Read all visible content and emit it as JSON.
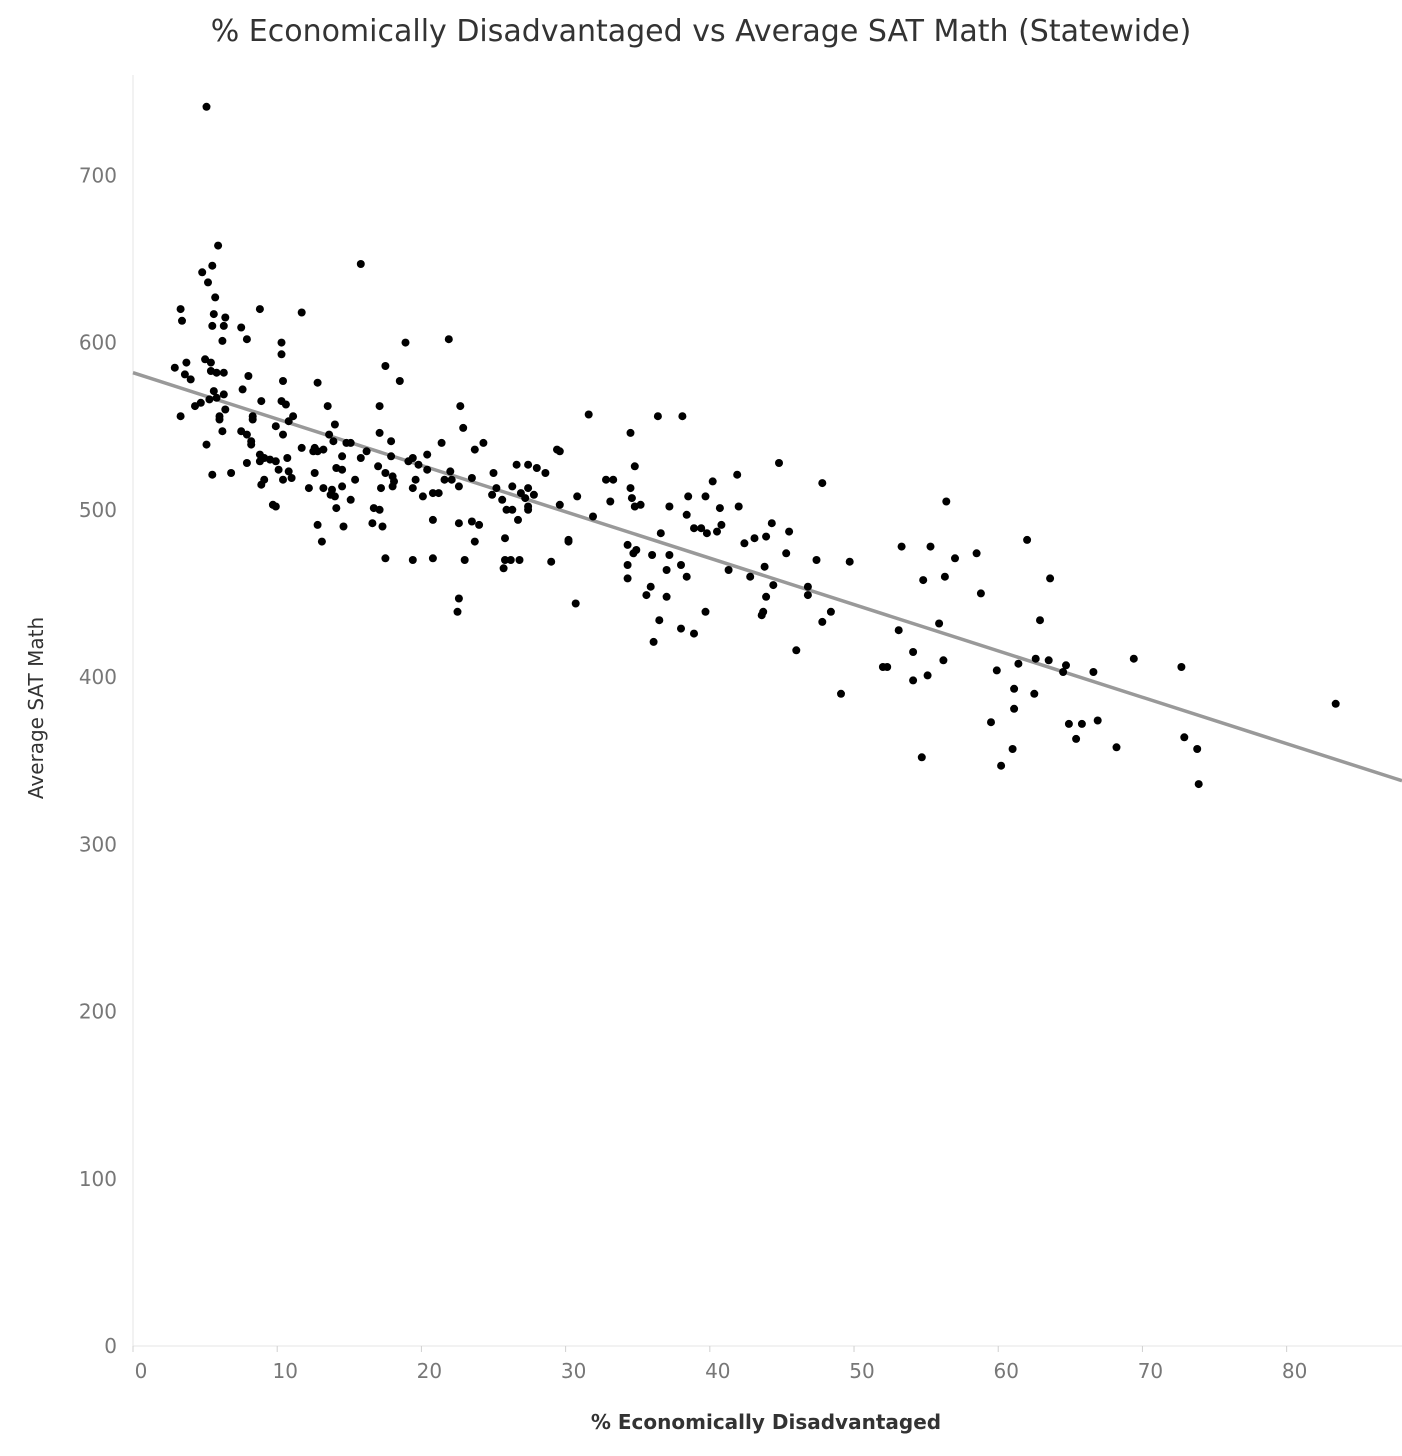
{
  "chart_data": {
    "type": "scatter",
    "title": "% Economically Disadvantaged vs Average SAT Math (Statewide)",
    "xlabel": "% Economically Disadvantaged",
    "ylabel": "Average SAT Math",
    "xlim": [
      0,
      88
    ],
    "ylim": [
      0,
      760
    ],
    "x_ticks": [
      "0",
      "10",
      "20",
      "30",
      "40",
      "50",
      "60",
      "70",
      "80"
    ],
    "y_ticks": [
      "0",
      "100",
      "200",
      "300",
      "400",
      "500",
      "600",
      "700"
    ],
    "trend_line": {
      "x": [
        0,
        88
      ],
      "y": [
        582,
        338
      ],
      "color": "#999999"
    },
    "point_color": "#000000",
    "grid": false,
    "points": [
      [
        5.1,
        741
      ],
      [
        5.9,
        658
      ],
      [
        4.8,
        642
      ],
      [
        5.5,
        646
      ],
      [
        5.2,
        636
      ],
      [
        5.7,
        627
      ],
      [
        15.8,
        647
      ],
      [
        8.8,
        620
      ],
      [
        3.3,
        620
      ],
      [
        3.4,
        613
      ],
      [
        11.7,
        618
      ],
      [
        5.6,
        617
      ],
      [
        6.4,
        615
      ],
      [
        5.5,
        610
      ],
      [
        6.3,
        610
      ],
      [
        7.5,
        609
      ],
      [
        10.3,
        600
      ],
      [
        6.2,
        601
      ],
      [
        7.9,
        602
      ],
      [
        18.9,
        600
      ],
      [
        21.9,
        602
      ],
      [
        10.3,
        593
      ],
      [
        5.0,
        590
      ],
      [
        5.4,
        588
      ],
      [
        3.7,
        588
      ],
      [
        17.5,
        586
      ],
      [
        2.9,
        585
      ],
      [
        3.6,
        581
      ],
      [
        5.4,
        583
      ],
      [
        5.8,
        582
      ],
      [
        6.3,
        582
      ],
      [
        8.0,
        580
      ],
      [
        4.0,
        578
      ],
      [
        10.4,
        577
      ],
      [
        12.8,
        576
      ],
      [
        18.5,
        577
      ],
      [
        5.6,
        571
      ],
      [
        7.6,
        572
      ],
      [
        6.3,
        569
      ],
      [
        5.3,
        566
      ],
      [
        5.8,
        567
      ],
      [
        8.9,
        565
      ],
      [
        10.3,
        565
      ],
      [
        10.6,
        563
      ],
      [
        4.7,
        564
      ],
      [
        4.3,
        562
      ],
      [
        6.4,
        560
      ],
      [
        13.5,
        562
      ],
      [
        17.1,
        562
      ],
      [
        22.7,
        562
      ],
      [
        6.0,
        556
      ],
      [
        6.0,
        554
      ],
      [
        8.3,
        556
      ],
      [
        8.3,
        554
      ],
      [
        11.1,
        556
      ],
      [
        3.3,
        556
      ],
      [
        31.6,
        557
      ],
      [
        36.4,
        556
      ],
      [
        38.1,
        556
      ],
      [
        10.8,
        553
      ],
      [
        14.0,
        551
      ],
      [
        9.9,
        550
      ],
      [
        6.2,
        547
      ],
      [
        7.5,
        547
      ],
      [
        7.9,
        545
      ],
      [
        10.4,
        545
      ],
      [
        13.6,
        545
      ],
      [
        17.1,
        546
      ],
      [
        22.9,
        549
      ],
      [
        34.5,
        546
      ],
      [
        8.2,
        541
      ],
      [
        8.2,
        539
      ],
      [
        5.1,
        539
      ],
      [
        13.9,
        541
      ],
      [
        14.8,
        540
      ],
      [
        15.1,
        540
      ],
      [
        17.9,
        541
      ],
      [
        21.4,
        540
      ],
      [
        24.3,
        540
      ],
      [
        12.6,
        537
      ],
      [
        11.7,
        537
      ],
      [
        12.5,
        535
      ],
      [
        12.8,
        535
      ],
      [
        13.2,
        536
      ],
      [
        16.2,
        535
      ],
      [
        23.7,
        536
      ],
      [
        29.4,
        536
      ],
      [
        29.6,
        535
      ],
      [
        8.8,
        533
      ],
      [
        9.1,
        531
      ],
      [
        10.7,
        531
      ],
      [
        14.5,
        532
      ],
      [
        15.8,
        531
      ],
      [
        17.9,
        532
      ],
      [
        19.4,
        531
      ],
      [
        20.4,
        533
      ],
      [
        9.5,
        530
      ],
      [
        9.9,
        529
      ],
      [
        8.8,
        529
      ],
      [
        7.9,
        528
      ],
      [
        19.1,
        529
      ],
      [
        19.8,
        527
      ],
      [
        26.6,
        527
      ],
      [
        27.4,
        527
      ],
      [
        34.8,
        526
      ],
      [
        44.8,
        528
      ],
      [
        5.5,
        521
      ],
      [
        6.8,
        522
      ],
      [
        10.1,
        524
      ],
      [
        10.8,
        523
      ],
      [
        12.6,
        522
      ],
      [
        14.1,
        525
      ],
      [
        14.5,
        524
      ],
      [
        17.0,
        526
      ],
      [
        17.5,
        522
      ],
      [
        18.0,
        520
      ],
      [
        20.4,
        524
      ],
      [
        22.0,
        523
      ],
      [
        25.0,
        522
      ],
      [
        28.0,
        525
      ],
      [
        28.6,
        522
      ],
      [
        41.9,
        521
      ],
      [
        10.4,
        518
      ],
      [
        11.0,
        519
      ],
      [
        9.1,
        518
      ],
      [
        15.4,
        518
      ],
      [
        18.1,
        517
      ],
      [
        19.6,
        518
      ],
      [
        21.6,
        518
      ],
      [
        22.1,
        518
      ],
      [
        23.5,
        519
      ],
      [
        32.8,
        518
      ],
      [
        33.3,
        518
      ],
      [
        40.2,
        517
      ],
      [
        47.8,
        516
      ],
      [
        8.9,
        515
      ],
      [
        12.2,
        513
      ],
      [
        13.2,
        513
      ],
      [
        13.8,
        512
      ],
      [
        14.5,
        514
      ],
      [
        17.2,
        513
      ],
      [
        18.0,
        514
      ],
      [
        19.4,
        513
      ],
      [
        22.6,
        514
      ],
      [
        25.2,
        513
      ],
      [
        26.3,
        514
      ],
      [
        27.4,
        513
      ],
      [
        34.5,
        513
      ],
      [
        13.7,
        509
      ],
      [
        14.0,
        508
      ],
      [
        15.1,
        506
      ],
      [
        20.1,
        508
      ],
      [
        20.8,
        510
      ],
      [
        21.2,
        510
      ],
      [
        24.9,
        509
      ],
      [
        25.6,
        506
      ],
      [
        26.9,
        510
      ],
      [
        27.2,
        507
      ],
      [
        27.8,
        509
      ],
      [
        30.8,
        508
      ],
      [
        33.1,
        505
      ],
      [
        34.6,
        507
      ],
      [
        35.2,
        503
      ],
      [
        38.5,
        508
      ],
      [
        39.7,
        508
      ],
      [
        9.7,
        503
      ],
      [
        9.9,
        502
      ],
      [
        14.1,
        501
      ],
      [
        16.7,
        501
      ],
      [
        17.1,
        500
      ],
      [
        25.9,
        500
      ],
      [
        26.3,
        500
      ],
      [
        27.4,
        502
      ],
      [
        27.4,
        500
      ],
      [
        29.6,
        503
      ],
      [
        34.8,
        502
      ],
      [
        37.2,
        502
      ],
      [
        40.7,
        501
      ],
      [
        42.0,
        502
      ],
      [
        16.6,
        492
      ],
      [
        17.3,
        490
      ],
      [
        12.8,
        491
      ],
      [
        14.6,
        490
      ],
      [
        20.8,
        494
      ],
      [
        22.6,
        492
      ],
      [
        23.5,
        493
      ],
      [
        24.0,
        491
      ],
      [
        26.7,
        494
      ],
      [
        31.9,
        496
      ],
      [
        38.4,
        497
      ],
      [
        40.8,
        491
      ],
      [
        44.3,
        492
      ],
      [
        34.3,
        479
      ],
      [
        30.2,
        482
      ],
      [
        36.6,
        486
      ],
      [
        38.9,
        489
      ],
      [
        39.4,
        489
      ],
      [
        39.8,
        486
      ],
      [
        40.5,
        487
      ],
      [
        43.9,
        484
      ],
      [
        43.1,
        483
      ],
      [
        45.5,
        487
      ],
      [
        13.1,
        481
      ],
      [
        23.7,
        481
      ],
      [
        25.8,
        483
      ],
      [
        30.2,
        481
      ],
      [
        17.5,
        471
      ],
      [
        19.4,
        470
      ],
      [
        20.8,
        471
      ],
      [
        23.0,
        470
      ],
      [
        25.8,
        470
      ],
      [
        26.2,
        470
      ],
      [
        26.8,
        470
      ],
      [
        29.0,
        469
      ],
      [
        34.7,
        474
      ],
      [
        34.9,
        476
      ],
      [
        36.0,
        473
      ],
      [
        37.2,
        473
      ],
      [
        42.4,
        480
      ],
      [
        45.3,
        474
      ],
      [
        47.4,
        470
      ],
      [
        49.7,
        469
      ],
      [
        34.3,
        467
      ],
      [
        37.0,
        464
      ],
      [
        38.0,
        467
      ],
      [
        41.3,
        464
      ],
      [
        43.8,
        466
      ],
      [
        42.8,
        460
      ],
      [
        34.3,
        459
      ],
      [
        38.4,
        460
      ],
      [
        35.9,
        454
      ],
      [
        35.6,
        449
      ],
      [
        37.0,
        448
      ],
      [
        44.4,
        455
      ],
      [
        43.9,
        448
      ],
      [
        46.8,
        454
      ],
      [
        46.8,
        449
      ],
      [
        25.7,
        465
      ],
      [
        22.6,
        447
      ],
      [
        22.5,
        439
      ],
      [
        30.7,
        444
      ],
      [
        36.5,
        434
      ],
      [
        38.0,
        429
      ],
      [
        38.9,
        426
      ],
      [
        39.7,
        439
      ],
      [
        43.6,
        437
      ],
      [
        43.7,
        439
      ],
      [
        47.8,
        433
      ],
      [
        48.4,
        439
      ],
      [
        36.1,
        421
      ],
      [
        46.0,
        416
      ],
      [
        49.1,
        390
      ],
      [
        53.3,
        478
      ],
      [
        55.3,
        478
      ],
      [
        54.8,
        458
      ],
      [
        56.3,
        460
      ],
      [
        57.0,
        471
      ],
      [
        58.5,
        474
      ],
      [
        56.4,
        505
      ],
      [
        58.8,
        450
      ],
      [
        55.9,
        432
      ],
      [
        53.1,
        428
      ],
      [
        52.0,
        406
      ],
      [
        52.3,
        406
      ],
      [
        54.1,
        415
      ],
      [
        54.1,
        398
      ],
      [
        55.1,
        401
      ],
      [
        56.2,
        410
      ],
      [
        54.7,
        352
      ],
      [
        59.5,
        373
      ],
      [
        59.9,
        404
      ],
      [
        60.2,
        347
      ],
      [
        61.1,
        393
      ],
      [
        61.1,
        381
      ],
      [
        61.4,
        408
      ],
      [
        61.0,
        357
      ],
      [
        62.0,
        482
      ],
      [
        62.5,
        390
      ],
      [
        62.6,
        411
      ],
      [
        62.9,
        434
      ],
      [
        63.5,
        410
      ],
      [
        63.6,
        459
      ],
      [
        64.5,
        403
      ],
      [
        64.7,
        407
      ],
      [
        64.9,
        372
      ],
      [
        65.4,
        363
      ],
      [
        65.8,
        372
      ],
      [
        66.6,
        403
      ],
      [
        66.9,
        374
      ],
      [
        68.2,
        358
      ],
      [
        69.4,
        411
      ],
      [
        72.7,
        406
      ],
      [
        72.9,
        364
      ],
      [
        73.8,
        357
      ],
      [
        73.9,
        336
      ],
      [
        83.4,
        384
      ]
    ]
  }
}
